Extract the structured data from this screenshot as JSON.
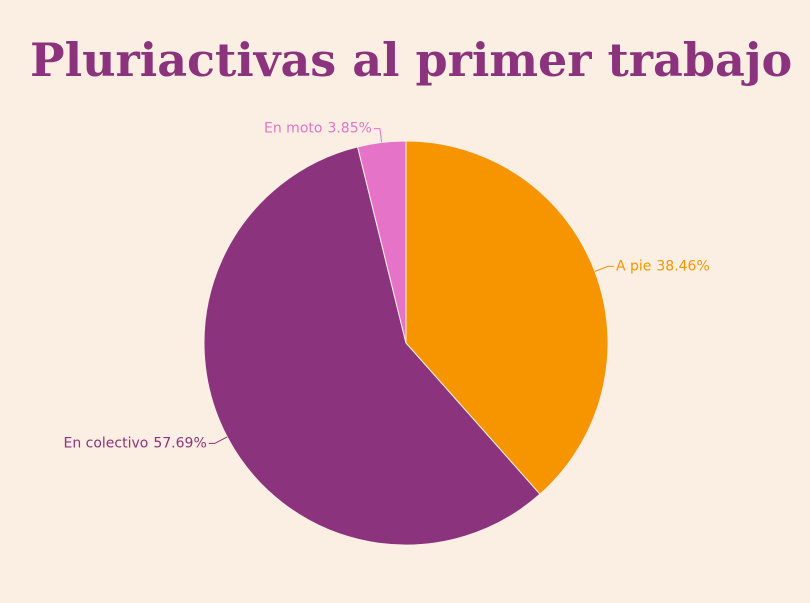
{
  "chart_data": {
    "type": "pie",
    "title": "Pluriactivas al primer trabajo",
    "categories": [
      "A pie",
      "En colectivo",
      "En moto"
    ],
    "values": [
      38.46,
      57.69,
      3.85
    ],
    "value_labels": [
      "38.46%",
      "57.69%",
      "3.85%"
    ],
    "colors": [
      "#f79500",
      "#8b347d",
      "#e574c9"
    ]
  }
}
